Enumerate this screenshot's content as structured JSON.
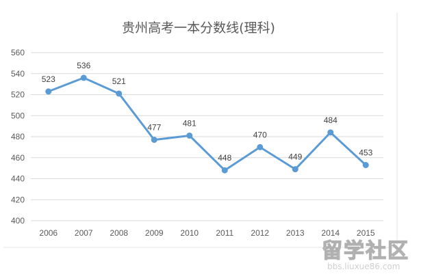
{
  "chart_data": {
    "type": "line",
    "title": "贵州高考一本分数线(理科)",
    "categories": [
      "2006",
      "2007",
      "2008",
      "2009",
      "2010",
      "2011",
      "2012",
      "2013",
      "2014",
      "2015"
    ],
    "series": [
      {
        "values": [
          523,
          536,
          521,
          477,
          481,
          448,
          470,
          449,
          484,
          453
        ],
        "color": "#5b9bd5"
      }
    ],
    "yticks": [
      "400",
      "420",
      "440",
      "460",
      "480",
      "500",
      "520",
      "540",
      "560"
    ],
    "ylim": [
      400,
      560
    ],
    "grid": true,
    "legend": "none",
    "data_labels": true
  },
  "watermark": {
    "text": "留学社区",
    "url": "bbs.liuxue86.com"
  }
}
